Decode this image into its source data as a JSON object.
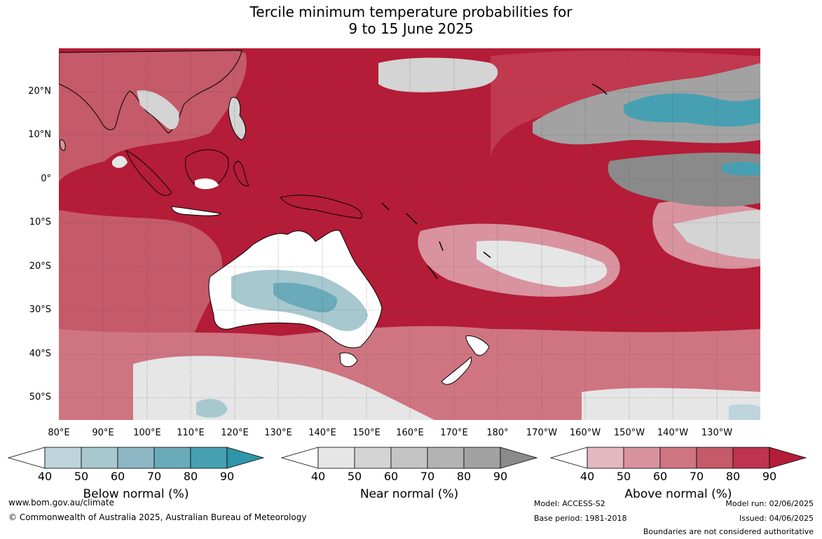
{
  "title": {
    "line1": "Tercile minimum temperature probabilities for",
    "line2": "9 to 15 June 2025"
  },
  "map": {
    "lat_labels": [
      "20°N",
      "10°N",
      "0°",
      "10°S",
      "20°S",
      "30°S",
      "40°S",
      "50°S"
    ],
    "lon_labels": [
      "80°E",
      "90°E",
      "100°E",
      "110°E",
      "120°E",
      "130°E",
      "140°E",
      "150°E",
      "160°E",
      "170°E",
      "180°",
      "170°W",
      "160°W",
      "150°W",
      "140°W",
      "130°W"
    ],
    "colors": {
      "above_90": "#b41c37",
      "above_80": "#c0394f",
      "ocean_base": "#b41c37",
      "land_outline": "#000000",
      "grid": "#555555"
    }
  },
  "colorbars": [
    {
      "title": "Below normal (%)",
      "ticks": [
        "40",
        "50",
        "60",
        "70",
        "80",
        "90"
      ],
      "colors": [
        "#ffffff",
        "#bdd5db",
        "#a7c8cf",
        "#8db7c5",
        "#6aaab9",
        "#47a0b2",
        "#2f95a8"
      ]
    },
    {
      "title": "Near normal (%)",
      "ticks": [
        "40",
        "50",
        "60",
        "70",
        "80",
        "90"
      ],
      "colors": [
        "#ffffff",
        "#e6e6e6",
        "#d4d4d4",
        "#c4c4c4",
        "#b3b3b3",
        "#a2a2a2",
        "#8a8a8a"
      ]
    },
    {
      "title": "Above normal (%)",
      "ticks": [
        "40",
        "50",
        "60",
        "70",
        "80",
        "90"
      ],
      "colors": [
        "#ffffff",
        "#e3b8c0",
        "#d8939f",
        "#cf7581",
        "#c55a68",
        "#bf3350",
        "#b41c37"
      ]
    }
  ],
  "footer": {
    "url": "www.bom.gov.au/climate",
    "copyright": "© Commonwealth of Australia 2025, Australian Bureau of Meteorology",
    "model": "Model: ACCESS-S2",
    "base_period": "Base period: 1981-2018",
    "model_run": "Model run: 02/06/2025",
    "issued": "Issued: 04/06/2025",
    "disclaimer": "Boundaries are not considered authoritative"
  }
}
